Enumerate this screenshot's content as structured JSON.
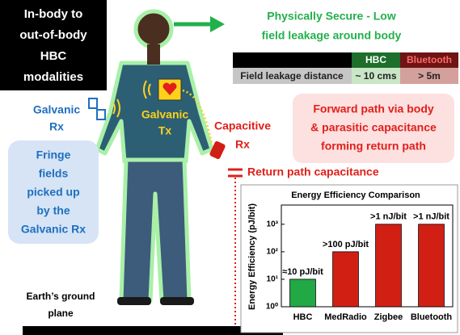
{
  "modalities_box": {
    "lines": [
      "In-body to",
      "out-of-body",
      "HBC",
      "modalities"
    ]
  },
  "secure_note": {
    "lines": [
      "Physically Secure - Low",
      "field leakage around body"
    ]
  },
  "table": {
    "header": [
      "HBC",
      "Bluetooth"
    ],
    "rows": [
      [
        "Field leakage distance",
        "~ 10 cms",
        "> 5m"
      ]
    ]
  },
  "galvanic_rx": {
    "lines": [
      "Galvanic",
      "Rx"
    ]
  },
  "galvanic_tx": {
    "lines": [
      "Galvanic",
      "Tx"
    ]
  },
  "capacitive_rx": {
    "lines": [
      "Capacitive",
      "Rx"
    ]
  },
  "forward_path": {
    "lines": [
      "Forward path via body",
      "& parasitic capacitance",
      "forming return path"
    ]
  },
  "return_path": "Return path capacitance",
  "fringe_fields": {
    "lines": [
      "Fringe",
      "fields",
      "picked up",
      "by the",
      "Galvanic Rx"
    ]
  },
  "ground": {
    "lines": [
      "Earth’s ground",
      "plane"
    ]
  },
  "chart_data": {
    "type": "bar",
    "title": "Energy Efficiency Comparison",
    "y_label": "Energy Efficiency (pJ/bit)",
    "categories": [
      "HBC",
      "MedRadio",
      "Zigbee",
      "Bluetooth"
    ],
    "values": [
      10,
      100,
      1000,
      1000
    ],
    "value_labels": [
      "≈10 pJ/bit",
      ">100 pJ/bit",
      ">1 nJ/bit",
      ">1 nJ/bit"
    ],
    "colors": [
      "#22a845",
      "#d21f14",
      "#d21f14",
      "#d21f14"
    ],
    "log_scale": true,
    "ylim": [
      1,
      5000
    ],
    "yticks": [
      {
        "value": 1,
        "label": "10⁰"
      },
      {
        "value": 10,
        "label": "10¹"
      },
      {
        "value": 100,
        "label": "10²"
      },
      {
        "value": 1000,
        "label": "10³"
      }
    ]
  }
}
